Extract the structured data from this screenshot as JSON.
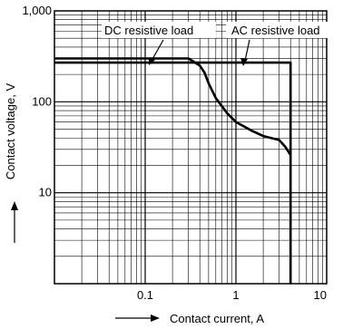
{
  "chart_data": {
    "type": "line",
    "title": "",
    "xlabel": "Contact current, A",
    "ylabel": "Contact voltage, V",
    "x_scale": "log",
    "y_scale": "log",
    "xlim": [
      0.01,
      10
    ],
    "ylim": [
      1,
      1000
    ],
    "grid": true,
    "x_ticks": [
      {
        "value": 0.1,
        "label": "0.1"
      },
      {
        "value": 1,
        "label": "1"
      },
      {
        "value": 10,
        "label": "10"
      }
    ],
    "y_ticks": [
      {
        "value": 10,
        "label": "10"
      },
      {
        "value": 100,
        "label": "100"
      },
      {
        "value": 1000,
        "label": "1,000"
      }
    ],
    "series": [
      {
        "name": "DC resistive load",
        "x": [
          0.01,
          0.3,
          0.4,
          0.45,
          0.5,
          0.6,
          0.8,
          1.0,
          1.5,
          2.0,
          3.0,
          3.5,
          4.0
        ],
        "y": [
          300,
          300,
          250,
          210,
          160,
          110,
          75,
          60,
          48,
          42,
          38,
          32,
          26
        ]
      },
      {
        "name": "AC resistive load",
        "x": [
          0.01,
          4.0,
          4.0
        ],
        "y": [
          270,
          270,
          1
        ]
      }
    ]
  }
}
